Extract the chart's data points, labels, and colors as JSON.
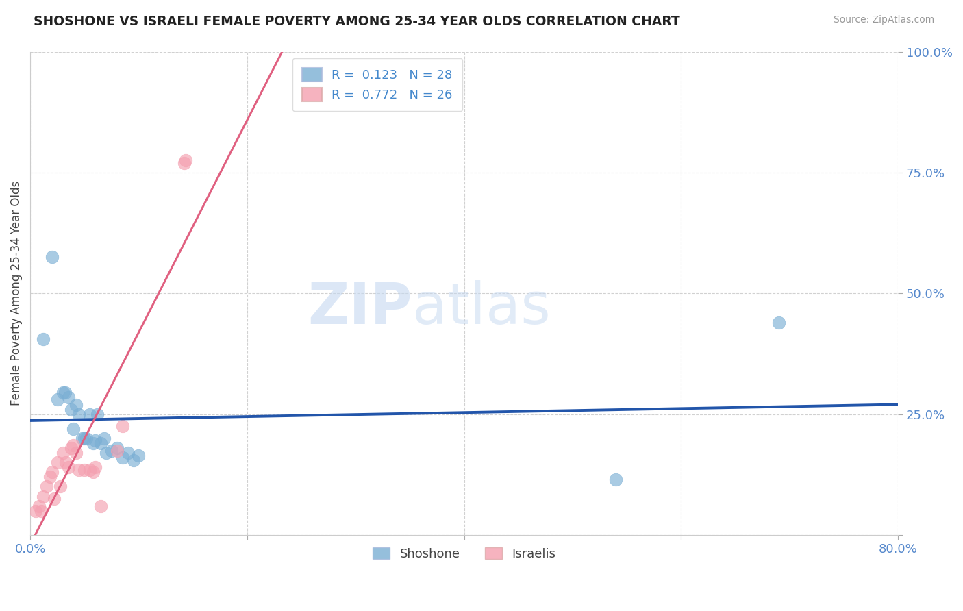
{
  "title": "SHOSHONE VS ISRAELI FEMALE POVERTY AMONG 25-34 YEAR OLDS CORRELATION CHART",
  "source": "Source: ZipAtlas.com",
  "ylabel": "Female Poverty Among 25-34 Year Olds",
  "xlim": [
    0.0,
    0.8
  ],
  "ylim": [
    0.0,
    1.0
  ],
  "xticks": [
    0.0,
    0.2,
    0.4,
    0.6,
    0.8
  ],
  "xticklabels": [
    "0.0%",
    "",
    "",
    "",
    "80.0%"
  ],
  "yticks": [
    0.0,
    0.25,
    0.5,
    0.75,
    1.0
  ],
  "yticklabels": [
    "",
    "25.0%",
    "50.0%",
    "75.0%",
    "100.0%"
  ],
  "shoshone_color": "#7BAFD4",
  "israelis_color": "#F4A0B0",
  "trendline_shoshone_color": "#2255AA",
  "trendline_israelis_color": "#E06080",
  "r_shoshone": 0.123,
  "n_shoshone": 28,
  "r_israelis": 0.772,
  "n_israelis": 26,
  "shoshone_x": [
    0.012,
    0.02,
    0.025,
    0.03,
    0.032,
    0.035,
    0.038,
    0.04,
    0.042,
    0.045,
    0.048,
    0.05,
    0.052,
    0.055,
    0.058,
    0.06,
    0.062,
    0.065,
    0.068,
    0.07,
    0.075,
    0.08,
    0.085,
    0.09,
    0.095,
    0.1,
    0.54,
    0.69
  ],
  "shoshone_y": [
    0.405,
    0.575,
    0.28,
    0.295,
    0.295,
    0.285,
    0.26,
    0.22,
    0.27,
    0.25,
    0.2,
    0.2,
    0.2,
    0.25,
    0.19,
    0.195,
    0.25,
    0.19,
    0.2,
    0.17,
    0.175,
    0.18,
    0.16,
    0.17,
    0.155,
    0.165,
    0.115,
    0.44
  ],
  "israelis_x": [
    0.005,
    0.008,
    0.01,
    0.012,
    0.015,
    0.018,
    0.02,
    0.022,
    0.025,
    0.028,
    0.03,
    0.033,
    0.035,
    0.038,
    0.04,
    0.042,
    0.045,
    0.05,
    0.055,
    0.058,
    0.06,
    0.065,
    0.08,
    0.085,
    0.142,
    0.143
  ],
  "israelis_y": [
    0.05,
    0.06,
    0.05,
    0.08,
    0.1,
    0.12,
    0.13,
    0.075,
    0.15,
    0.1,
    0.17,
    0.15,
    0.14,
    0.18,
    0.185,
    0.17,
    0.135,
    0.135,
    0.135,
    0.13,
    0.14,
    0.06,
    0.175,
    0.225,
    0.77,
    0.775
  ],
  "watermark_zip": "ZIP",
  "watermark_atlas": "atlas",
  "background_color": "#FFFFFF"
}
